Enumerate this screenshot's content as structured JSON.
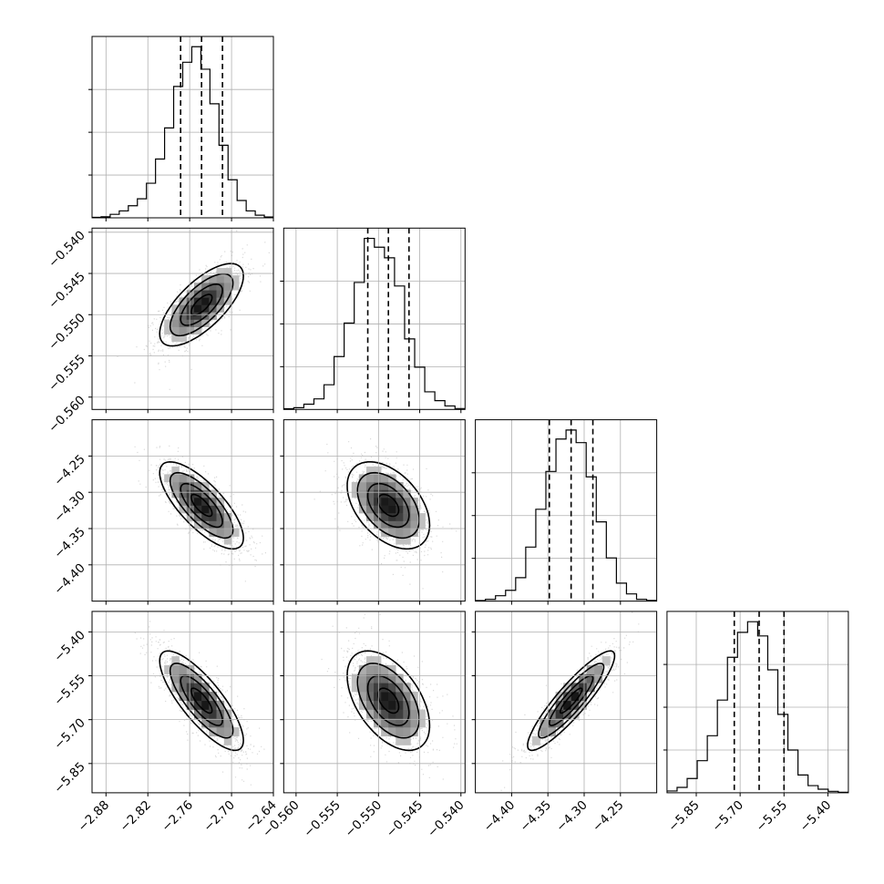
{
  "chart_data": {
    "type": "corner",
    "parameters": [
      {
        "mean": -2.743,
        "sigma": 0.03,
        "range": [
          -2.9,
          -2.64
        ],
        "ticks": [
          -2.88,
          -2.82,
          -2.76,
          -2.7,
          -2.64
        ],
        "tick_labels": [
          "−2.88",
          "−2.82",
          "−2.76",
          "−2.70",
          "−2.64"
        ],
        "quantiles": [
          -2.773,
          -2.743,
          -2.713
        ],
        "hist": [
          0.003,
          0.006,
          0.02,
          0.04,
          0.07,
          0.11,
          0.2,
          0.34,
          0.52,
          0.76,
          0.9,
          0.99,
          0.86,
          0.66,
          0.42,
          0.22,
          0.1,
          0.04,
          0.015,
          0.005
        ]
      },
      {
        "mean": -0.5488,
        "sigma": 0.0025,
        "range": [
          -0.5615,
          -0.5395
        ],
        "ticks": [
          -0.56,
          -0.555,
          -0.55,
          -0.545,
          -0.54
        ],
        "tick_labels": [
          "−0.560",
          "−0.555",
          "−0.550",
          "−0.545",
          "−0.540"
        ],
        "quantiles": [
          -0.5513,
          -0.5488,
          -0.5463
        ],
        "hist": [
          0.004,
          0.01,
          0.03,
          0.06,
          0.14,
          0.3,
          0.49,
          0.72,
          0.97,
          0.92,
          0.86,
          0.7,
          0.4,
          0.24,
          0.1,
          0.05,
          0.02,
          0.005
        ]
      },
      {
        "mean": -4.318,
        "sigma": 0.03,
        "range": [
          -4.45,
          -4.2
        ],
        "ticks": [
          -4.4,
          -4.35,
          -4.3,
          -4.25
        ],
        "tick_labels": [
          "−4.40",
          "−4.35",
          "−4.30",
          "−4.25"
        ],
        "quantiles": [
          -4.348,
          -4.318,
          -4.288
        ],
        "hist": [
          0.003,
          0.01,
          0.03,
          0.06,
          0.13,
          0.3,
          0.51,
          0.72,
          0.9,
          0.95,
          0.88,
          0.69,
          0.44,
          0.24,
          0.1,
          0.04,
          0.01,
          0.004
        ]
      },
      {
        "mean": -5.635,
        "sigma": 0.085,
        "range": [
          -5.95,
          -5.33
        ],
        "ticks": [
          -5.85,
          -5.7,
          -5.55,
          -5.4
        ],
        "tick_labels": [
          "−5.85",
          "−5.70",
          "−5.55",
          "−5.40"
        ],
        "quantiles": [
          -5.72,
          -5.635,
          -5.55
        ],
        "hist": [
          0.01,
          0.03,
          0.08,
          0.18,
          0.32,
          0.52,
          0.76,
          0.9,
          0.96,
          0.88,
          0.69,
          0.44,
          0.24,
          0.1,
          0.04,
          0.02,
          0.008,
          0.003
        ]
      }
    ],
    "correlations": [
      [
        1.0,
        0.7,
        -0.75,
        -0.8
      ],
      [
        0.7,
        1.0,
        -0.45,
        -0.5
      ],
      [
        -0.75,
        -0.45,
        1.0,
        0.9
      ],
      [
        -0.8,
        -0.5,
        0.9,
        1.0
      ]
    ],
    "contour_levels_sigma": [
      0.5,
      1.0,
      1.5,
      2.0
    ],
    "grid": true
  }
}
